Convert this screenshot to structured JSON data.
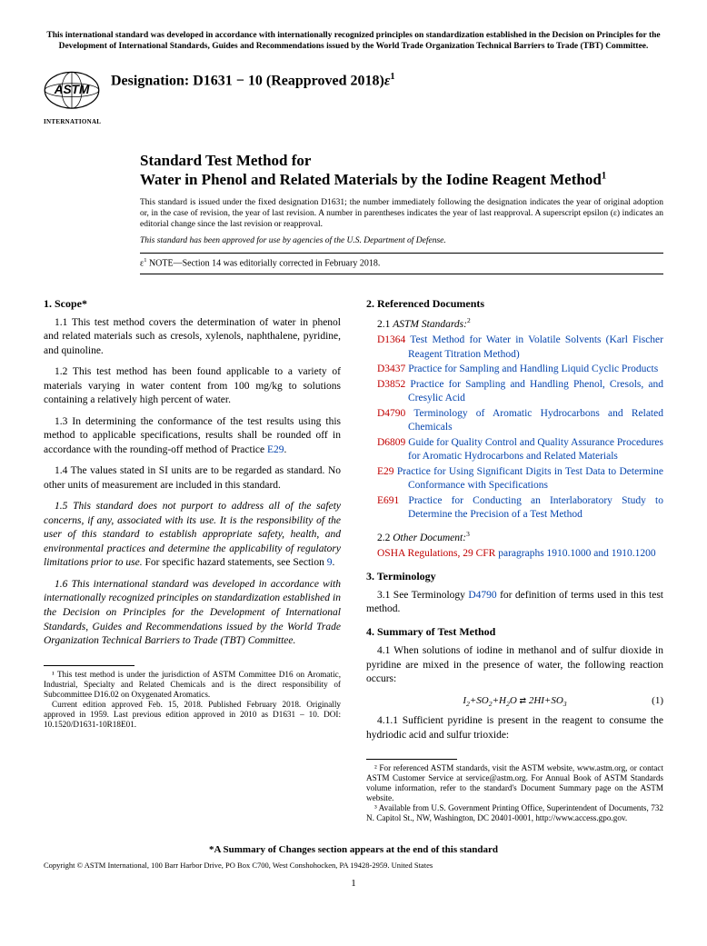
{
  "colors": {
    "link": "#0645ad",
    "refcode": "#c00000",
    "text": "#000000",
    "bg": "#ffffff"
  },
  "topNote": "This international standard was developed in accordance with internationally recognized principles on standardization established in the Decision on Principles for the Development of International Standards, Guides and Recommendations issued by the World Trade Organization Technical Barriers to Trade (TBT) Committee.",
  "logoSub": "INTERNATIONAL",
  "designation": {
    "label": "Designation: D1631 − 10 (Reapproved 2018)",
    "epsilon": "ε",
    "sup": "1"
  },
  "title": {
    "line1": "Standard Test Method for",
    "line2": "Water in Phenol and Related Materials by the Iodine Reagent Method",
    "sup": "1"
  },
  "issuedNote": "This standard is issued under the fixed designation D1631; the number immediately following the designation indicates the year of original adoption or, in the case of revision, the year of last revision. A number in parentheses indicates the year of last reapproval. A superscript epsilon (ε) indicates an editorial change since the last revision or reapproval.",
  "dodNote": "This standard has been approved for use by agencies of the U.S. Department of Defense.",
  "epsNote": {
    "prefix": "ε",
    "sup": "1",
    "body": " NOTE—Section 14 was editorially corrected in February 2018."
  },
  "sections": {
    "scope": {
      "head": "1. Scope*",
      "p1": "1.1 This test method covers the determination of water in phenol and related materials such as cresols, xylenols, naphthalene, pyridine, and quinoline.",
      "p2": "1.2 This test method has been found applicable to a variety of materials varying in water content from 100 mg/kg to solutions containing a relatively high percent of water.",
      "p3a": "1.3 In determining the conformance of the test results using this method to applicable specifications, results shall be rounded off in accordance with the rounding-off method of Practice ",
      "p3link": "E29",
      "p3b": ".",
      "p4": "1.4 The values stated in SI units are to be regarded as standard. No other units of measurement are included in this standard.",
      "p5a": "1.5 This standard does not purport to address all of the safety concerns, if any, associated with its use. It is the responsibility of the user of this standard to establish appropriate safety, health, and environmental practices and determine the applicability of regulatory limitations prior to use.",
      "p5b": " For specific hazard statements, see Section ",
      "p5link": "9",
      "p5c": ".",
      "p6": "1.6 This international standard was developed in accordance with internationally recognized principles on standardization established in the Decision on Principles for the Development of International Standards, Guides and Recommendations issued by the World Trade Organization Technical Barriers to Trade (TBT) Committee."
    },
    "refdocs": {
      "head": "2. Referenced Documents",
      "sub1a": "2.1 ",
      "sub1b": "ASTM Standards:",
      "sub1sup": "2",
      "items": [
        {
          "code": "D1364",
          "text": " Test Method for Water in Volatile Solvents (Karl Fischer Reagent Titration Method)"
        },
        {
          "code": "D3437",
          "text": " Practice for Sampling and Handling Liquid Cyclic Products"
        },
        {
          "code": "D3852",
          "text": " Practice for Sampling and Handling Phenol, Cresols, and Cresylic Acid"
        },
        {
          "code": "D4790",
          "text": " Terminology of Aromatic Hydrocarbons and Related Chemicals"
        },
        {
          "code": "D6809",
          "text": " Guide for Quality Control and Quality Assurance Procedures for Aromatic Hydrocarbons and Related Materials"
        },
        {
          "code": "E29",
          "text": " Practice for Using Significant Digits in Test Data to Determine Conformance with Specifications"
        },
        {
          "code": "E691",
          "text": " Practice for Conducting an Interlaboratory Study to Determine the Precision of a Test Method"
        }
      ],
      "sub2a": "2.2 ",
      "sub2b": "Other Document:",
      "sub2sup": "3",
      "osha": {
        "code": "OSHA Regulations, 29 CFR",
        "text": " paragraphs 1910.1000 and 1910.1200"
      }
    },
    "terminology": {
      "head": "3. Terminology",
      "p1a": "3.1 See Terminology ",
      "p1link": "D4790",
      "p1b": " for definition of terms used in this test method."
    },
    "summary": {
      "head": "4. Summary of Test Method",
      "p1": "4.1 When solutions of iodine in methanol and of sulfur dioxide in pyridine are mixed in the presence of water, the following reaction occurs:",
      "eqn": "I₂ + SO₂ + H₂O ⇄ 2HI + SO₃",
      "eqnum": "(1)",
      "p2": "4.1.1 Sufficient pyridine is present in the reagent to consume the hydriodic acid and sulfur trioxide:"
    }
  },
  "footnotes": {
    "left": [
      "¹ This test method is under the jurisdiction of ASTM Committee D16 on Aromatic, Industrial, Specialty and Related Chemicals and is the direct responsibility of Subcommittee D16.02 on Oxygenated Aromatics.",
      "Current edition approved Feb. 15, 2018. Published February 2018. Originally approved in 1959. Last previous edition approved in 2010 as D1631 – 10. DOI: 10.1520/D1631-10R18E01."
    ],
    "right": [
      "² For referenced ASTM standards, visit the ASTM website, www.astm.org, or contact ASTM Customer Service at service@astm.org. For Annual Book of ASTM Standards volume information, refer to the standard's Document Summary page on the ASTM website.",
      "³ Available from U.S. Government Printing Office, Superintendent of Documents, 732 N. Capitol St., NW, Washington, DC 20401-0001, http://www.access.gpo.gov."
    ]
  },
  "summaryNote": "*A Summary of Changes section appears at the end of this standard",
  "copyright": "Copyright © ASTM International, 100 Barr Harbor Drive, PO Box C700, West Conshohocken, PA 19428-2959. United States",
  "pageNum": "1"
}
